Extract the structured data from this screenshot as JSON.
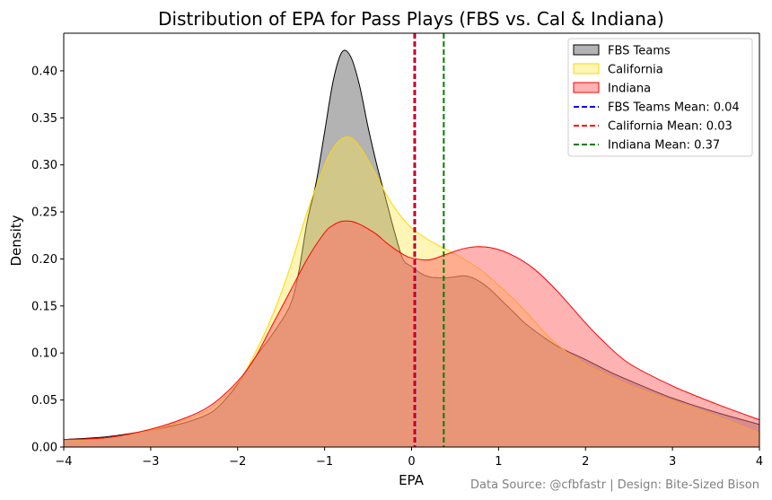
{
  "chart_data": {
    "type": "area",
    "title": "Distribution of EPA for Pass Plays (FBS vs. Cal & Indiana)",
    "xlabel": "EPA",
    "ylabel": "Density",
    "xlim": [
      -4,
      4
    ],
    "ylim": [
      0,
      0.44
    ],
    "xticks": [
      -4,
      -3,
      -2,
      -1,
      0,
      1,
      2,
      3,
      4
    ],
    "xtick_labels": [
      "−4",
      "−3",
      "−2",
      "−1",
      "0",
      "1",
      "2",
      "3",
      "4"
    ],
    "yticks": [
      0.0,
      0.05,
      0.1,
      0.15,
      0.2,
      0.25,
      0.3,
      0.35,
      0.4
    ],
    "ytick_labels": [
      "0.00",
      "0.05",
      "0.10",
      "0.15",
      "0.20",
      "0.25",
      "0.30",
      "0.35",
      "0.40"
    ],
    "legend_position": "top-right",
    "series": [
      {
        "name": "FBS Teams",
        "fill": "#808080",
        "fill_opacity": 0.6,
        "stroke": "#000000",
        "x": [
          -4.0,
          -3.5,
          -3.0,
          -2.6,
          -2.3,
          -2.1,
          -2.0,
          -1.8,
          -1.6,
          -1.4,
          -1.3,
          -1.2,
          -1.1,
          -1.0,
          -0.9,
          -0.8,
          -0.7,
          -0.6,
          -0.5,
          -0.4,
          -0.3,
          -0.2,
          -0.1,
          0.0,
          0.1,
          0.2,
          0.3,
          0.4,
          0.5,
          0.6,
          0.7,
          0.8,
          0.9,
          1.0,
          1.1,
          1.2,
          1.3,
          1.5,
          1.7,
          2.0,
          2.3,
          2.6,
          3.0,
          3.5,
          4.0
        ],
        "y": [
          0.008,
          0.011,
          0.018,
          0.026,
          0.037,
          0.055,
          0.067,
          0.095,
          0.12,
          0.15,
          0.185,
          0.24,
          0.28,
          0.335,
          0.39,
          0.42,
          0.415,
          0.385,
          0.34,
          0.3,
          0.265,
          0.23,
          0.2,
          0.192,
          0.185,
          0.181,
          0.18,
          0.18,
          0.181,
          0.182,
          0.18,
          0.175,
          0.168,
          0.159,
          0.15,
          0.141,
          0.132,
          0.118,
          0.106,
          0.093,
          0.079,
          0.067,
          0.052,
          0.037,
          0.024
        ]
      },
      {
        "name": "California",
        "fill": "#FFE54C",
        "fill_opacity": 0.4,
        "stroke": "#FFD700",
        "x": [
          -4.0,
          -3.5,
          -3.0,
          -2.6,
          -2.3,
          -2.0,
          -1.8,
          -1.6,
          -1.4,
          -1.2,
          -1.0,
          -0.9,
          -0.8,
          -0.7,
          -0.6,
          -0.5,
          -0.4,
          -0.3,
          -0.2,
          -0.1,
          0.0,
          0.2,
          0.4,
          0.6,
          0.8,
          1.0,
          1.2,
          1.4,
          1.6,
          1.8,
          2.0,
          2.3,
          2.6,
          3.0,
          3.5,
          4.0
        ],
        "y": [
          0.006,
          0.01,
          0.018,
          0.029,
          0.042,
          0.068,
          0.1,
          0.14,
          0.19,
          0.25,
          0.3,
          0.318,
          0.328,
          0.329,
          0.32,
          0.305,
          0.288,
          0.27,
          0.255,
          0.243,
          0.233,
          0.22,
          0.21,
          0.2,
          0.188,
          0.172,
          0.155,
          0.135,
          0.115,
          0.1,
          0.088,
          0.074,
          0.062,
          0.049,
          0.033,
          0.015
        ]
      },
      {
        "name": "Indiana",
        "fill": "#FF6666",
        "fill_opacity": 0.5,
        "stroke": "#FF0000",
        "x": [
          -4.0,
          -3.5,
          -3.0,
          -2.6,
          -2.3,
          -2.0,
          -1.8,
          -1.6,
          -1.4,
          -1.2,
          -1.0,
          -0.9,
          -0.8,
          -0.7,
          -0.6,
          -0.5,
          -0.4,
          -0.3,
          -0.2,
          -0.1,
          0.0,
          0.2,
          0.4,
          0.6,
          0.8,
          1.0,
          1.2,
          1.4,
          1.6,
          1.8,
          2.0,
          2.2,
          2.5,
          3.0,
          3.5,
          4.0
        ],
        "y": [
          0.008,
          0.01,
          0.019,
          0.031,
          0.045,
          0.07,
          0.095,
          0.13,
          0.165,
          0.2,
          0.228,
          0.236,
          0.24,
          0.24,
          0.237,
          0.232,
          0.226,
          0.218,
          0.211,
          0.205,
          0.201,
          0.199,
          0.205,
          0.211,
          0.213,
          0.21,
          0.202,
          0.19,
          0.173,
          0.153,
          0.132,
          0.113,
          0.089,
          0.065,
          0.046,
          0.029
        ]
      }
    ],
    "mean_lines": [
      {
        "name": "FBS Teams Mean: 0.04",
        "value": 0.04,
        "color": "#0000FF"
      },
      {
        "name": "California Mean: 0.03",
        "value": 0.03,
        "color": "#FF0000"
      },
      {
        "name": "Indiana Mean: 0.37",
        "value": 0.37,
        "color": "#008000"
      }
    ],
    "footnote": "Data Source: @cfbfastr | Design: Bite-Sized Bison"
  }
}
